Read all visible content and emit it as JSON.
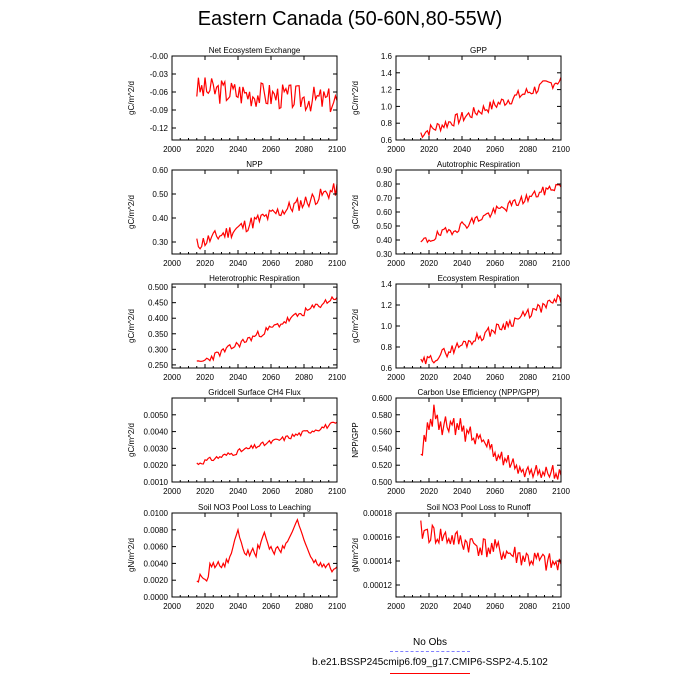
{
  "figure": {
    "title": "Eastern Canada (50-60N,80-55W)",
    "legend": {
      "obs_label": "No Obs",
      "obs_color": "#8080ff",
      "case_label": "b.e21.BSSP245cmip6.f09_g17.CMIP6-SSP2-4.5.102",
      "case_color": "#ff0000"
    }
  },
  "chart_data": [
    {
      "type": "line",
      "title": "Net Ecosystem Exchange",
      "ylabel": "gC/m^2/d",
      "xlim": [
        2000,
        2100
      ],
      "ylim": [
        -0.14,
        0.0
      ],
      "yticks": [
        -0.12,
        -0.09,
        -0.06,
        -0.03,
        -0.0
      ],
      "ytick_labels": [
        "-0.12",
        "-0.09",
        "-0.06",
        "-0.03",
        "-0.00"
      ],
      "xticks": [
        2000,
        2020,
        2040,
        2060,
        2080,
        2100
      ],
      "start": 2015,
      "trend": [
        -0.055,
        -0.075
      ],
      "noise": 0.022,
      "seed": 3
    },
    {
      "type": "line",
      "title": "GPP",
      "ylabel": "gC/m^2/d",
      "xlim": [
        2000,
        2100
      ],
      "ylim": [
        0.6,
        1.6
      ],
      "yticks": [
        0.6,
        0.8,
        1.0,
        1.2,
        1.4,
        1.6
      ],
      "ytick_labels": [
        "0.6",
        "0.8",
        "1.0",
        "1.2",
        "1.4",
        "1.6"
      ],
      "xticks": [
        2000,
        2020,
        2040,
        2060,
        2080,
        2100
      ],
      "start": 2015,
      "trend": [
        0.68,
        1.32
      ],
      "noise": 0.07,
      "seed": 7
    },
    {
      "type": "line",
      "title": "NPP",
      "ylabel": "gC/m^2/d",
      "xlim": [
        2000,
        2100
      ],
      "ylim": [
        0.25,
        0.6
      ],
      "yticks": [
        0.3,
        0.4,
        0.5,
        0.6
      ],
      "ytick_labels": [
        "0.30",
        "0.40",
        "0.50",
        "0.60"
      ],
      "xticks": [
        2000,
        2020,
        2040,
        2060,
        2080,
        2100
      ],
      "start": 2015,
      "trend": [
        0.29,
        0.52
      ],
      "noise": 0.03,
      "seed": 11
    },
    {
      "type": "line",
      "title": "Autotrophic Respiration",
      "ylabel": "gC/m^2/d",
      "xlim": [
        2000,
        2100
      ],
      "ylim": [
        0.3,
        0.9
      ],
      "yticks": [
        0.3,
        0.4,
        0.5,
        0.6,
        0.7,
        0.8,
        0.9
      ],
      "ytick_labels": [
        "0.30",
        "0.40",
        "0.50",
        "0.60",
        "0.70",
        "0.80",
        "0.90"
      ],
      "xticks": [
        2000,
        2020,
        2040,
        2060,
        2080,
        2100
      ],
      "start": 2015,
      "trend": [
        0.38,
        0.8
      ],
      "noise": 0.035,
      "seed": 19
    },
    {
      "type": "line",
      "title": "Heterotrophic Respiration",
      "ylabel": "gC/m^2/d",
      "xlim": [
        2000,
        2100
      ],
      "ylim": [
        0.24,
        0.51
      ],
      "yticks": [
        0.25,
        0.3,
        0.35,
        0.4,
        0.45,
        0.5
      ],
      "ytick_labels": [
        "0.250",
        "0.300",
        "0.350",
        "0.400",
        "0.450",
        "0.500"
      ],
      "xticks": [
        2000,
        2020,
        2040,
        2060,
        2080,
        2100
      ],
      "start": 2015,
      "trend": [
        0.252,
        0.47
      ],
      "noise": 0.012,
      "seed": 23
    },
    {
      "type": "line",
      "title": "Ecosystem Respiration",
      "ylabel": "gC/m^2/d",
      "xlim": [
        2000,
        2100
      ],
      "ylim": [
        0.6,
        1.4
      ],
      "yticks": [
        0.6,
        0.8,
        1.0,
        1.2,
        1.4
      ],
      "ytick_labels": [
        "0.6",
        "0.8",
        "1.0",
        "1.2",
        "1.4"
      ],
      "xticks": [
        2000,
        2020,
        2040,
        2060,
        2080,
        2100
      ],
      "start": 2015,
      "trend": [
        0.64,
        1.26
      ],
      "noise": 0.05,
      "seed": 29
    },
    {
      "type": "line",
      "title": "Gridcell Surface CH4 Flux",
      "ylabel": "gC/m^2/d",
      "xlim": [
        2000,
        2100
      ],
      "ylim": [
        0.001,
        0.006
      ],
      "yticks": [
        0.001,
        0.002,
        0.003,
        0.004,
        0.005
      ],
      "ytick_labels": [
        "0.0010",
        "0.0020",
        "0.0030",
        "0.0040",
        "0.0050"
      ],
      "xticks": [
        2000,
        2020,
        2040,
        2060,
        2080,
        2100
      ],
      "start": 2015,
      "trend": [
        0.0021,
        0.0045
      ],
      "noise": 0.00015,
      "seed": 31
    },
    {
      "type": "line",
      "title": "Carbon Use Efficiency (NPP/GPP)",
      "ylabel": "NPP/GPP",
      "xlim": [
        2000,
        2100
      ],
      "ylim": [
        0.5,
        0.6
      ],
      "yticks": [
        0.5,
        0.52,
        0.54,
        0.56,
        0.58,
        0.6
      ],
      "ytick_labels": [
        "0.500",
        "0.520",
        "0.540",
        "0.560",
        "0.580",
        "0.600"
      ],
      "xticks": [
        2000,
        2020,
        2040,
        2060,
        2080,
        2100
      ],
      "start": 2015,
      "points": [
        [
          2015,
          0.533
        ],
        [
          2016,
          0.532
        ],
        [
          2017,
          0.556
        ],
        [
          2018,
          0.548
        ],
        [
          2019,
          0.571
        ],
        [
          2020,
          0.562
        ],
        [
          2021,
          0.575
        ],
        [
          2022,
          0.566
        ],
        [
          2023,
          0.592
        ],
        [
          2024,
          0.575
        ],
        [
          2025,
          0.58
        ],
        [
          2026,
          0.562
        ],
        [
          2027,
          0.572
        ],
        [
          2028,
          0.556
        ],
        [
          2029,
          0.568
        ],
        [
          2030,
          0.578
        ],
        [
          2031,
          0.565
        ],
        [
          2032,
          0.56
        ],
        [
          2033,
          0.572
        ],
        [
          2034,
          0.568
        ],
        [
          2035,
          0.576
        ],
        [
          2036,
          0.556
        ],
        [
          2037,
          0.57
        ],
        [
          2038,
          0.562
        ],
        [
          2039,
          0.576
        ],
        [
          2040,
          0.56
        ],
        [
          2041,
          0.567
        ],
        [
          2042,
          0.548
        ],
        [
          2043,
          0.562
        ],
        [
          2044,
          0.558
        ],
        [
          2045,
          0.566
        ],
        [
          2046,
          0.55
        ],
        [
          2047,
          0.552
        ],
        [
          2048,
          0.545
        ],
        [
          2049,
          0.558
        ],
        [
          2050,
          0.552
        ],
        [
          2051,
          0.556
        ],
        [
          2052,
          0.548
        ],
        [
          2053,
          0.55
        ],
        [
          2054,
          0.546
        ],
        [
          2055,
          0.542
        ],
        [
          2056,
          0.551
        ],
        [
          2057,
          0.54
        ],
        [
          2058,
          0.545
        ],
        [
          2059,
          0.53
        ],
        [
          2060,
          0.535
        ],
        [
          2061,
          0.525
        ],
        [
          2062,
          0.532
        ],
        [
          2063,
          0.528
        ],
        [
          2064,
          0.536
        ],
        [
          2065,
          0.52
        ],
        [
          2066,
          0.528
        ],
        [
          2067,
          0.524
        ],
        [
          2068,
          0.532
        ],
        [
          2069,
          0.517
        ],
        [
          2070,
          0.522
        ],
        [
          2071,
          0.528
        ],
        [
          2072,
          0.516
        ],
        [
          2073,
          0.52
        ],
        [
          2074,
          0.51
        ],
        [
          2075,
          0.518
        ],
        [
          2076,
          0.512
        ],
        [
          2077,
          0.515
        ],
        [
          2078,
          0.506
        ],
        [
          2079,
          0.514
        ],
        [
          2080,
          0.518
        ],
        [
          2081,
          0.51
        ],
        [
          2082,
          0.515
        ],
        [
          2083,
          0.506
        ],
        [
          2084,
          0.512
        ],
        [
          2085,
          0.52
        ],
        [
          2086,
          0.509
        ],
        [
          2087,
          0.514
        ],
        [
          2088,
          0.505
        ],
        [
          2089,
          0.512
        ],
        [
          2090,
          0.508
        ],
        [
          2091,
          0.518
        ],
        [
          2092,
          0.51
        ],
        [
          2093,
          0.506
        ],
        [
          2094,
          0.512
        ],
        [
          2095,
          0.52
        ],
        [
          2096,
          0.504
        ],
        [
          2097,
          0.51
        ],
        [
          2098,
          0.503
        ],
        [
          2099,
          0.515
        ],
        [
          2100,
          0.508
        ]
      ]
    },
    {
      "type": "line",
      "title": "Soil NO3 Pool Loss to Leaching",
      "ylabel": "gN/m^2/d",
      "xlim": [
        2000,
        2100
      ],
      "ylim": [
        0.0,
        0.01
      ],
      "yticks": [
        0.0,
        0.002,
        0.004,
        0.006,
        0.008,
        0.01
      ],
      "ytick_labels": [
        "0.0000",
        "0.0020",
        "0.0040",
        "0.0060",
        "0.0080",
        "0.0100"
      ],
      "xticks": [
        2000,
        2020,
        2040,
        2060,
        2080,
        2100
      ],
      "start": 2015,
      "points": [
        [
          2015,
          0.0019
        ],
        [
          2016,
          0.0018
        ],
        [
          2017,
          0.0027
        ],
        [
          2018,
          0.0024
        ],
        [
          2019,
          0.0022
        ],
        [
          2020,
          0.0021
        ],
        [
          2021,
          0.0019
        ],
        [
          2022,
          0.0024
        ],
        [
          2023,
          0.004
        ],
        [
          2024,
          0.0036
        ],
        [
          2025,
          0.0041
        ],
        [
          2026,
          0.0035
        ],
        [
          2027,
          0.0038
        ],
        [
          2028,
          0.0042
        ],
        [
          2029,
          0.0037
        ],
        [
          2030,
          0.0035
        ],
        [
          2031,
          0.004
        ],
        [
          2032,
          0.0036
        ],
        [
          2033,
          0.0045
        ],
        [
          2034,
          0.0041
        ],
        [
          2035,
          0.0048
        ],
        [
          2036,
          0.0052
        ],
        [
          2037,
          0.006
        ],
        [
          2038,
          0.0068
        ],
        [
          2039,
          0.0074
        ],
        [
          2040,
          0.008
        ],
        [
          2041,
          0.0071
        ],
        [
          2042,
          0.0065
        ],
        [
          2043,
          0.0058
        ],
        [
          2044,
          0.0052
        ],
        [
          2045,
          0.005
        ],
        [
          2046,
          0.0056
        ],
        [
          2047,
          0.0049
        ],
        [
          2048,
          0.0054
        ],
        [
          2049,
          0.0058
        ],
        [
          2050,
          0.0052
        ],
        [
          2051,
          0.0048
        ],
        [
          2052,
          0.0062
        ],
        [
          2053,
          0.0058
        ],
        [
          2054,
          0.0066
        ],
        [
          2055,
          0.0072
        ],
        [
          2056,
          0.0077
        ],
        [
          2057,
          0.007
        ],
        [
          2058,
          0.0064
        ],
        [
          2059,
          0.0057
        ],
        [
          2060,
          0.006
        ],
        [
          2061,
          0.0055
        ],
        [
          2062,
          0.0051
        ],
        [
          2063,
          0.0058
        ],
        [
          2064,
          0.006
        ],
        [
          2065,
          0.0056
        ],
        [
          2066,
          0.0053
        ],
        [
          2067,
          0.0061
        ],
        [
          2068,
          0.0058
        ],
        [
          2069,
          0.0064
        ],
        [
          2070,
          0.0066
        ],
        [
          2071,
          0.007
        ],
        [
          2072,
          0.0074
        ],
        [
          2073,
          0.0078
        ],
        [
          2074,
          0.0083
        ],
        [
          2075,
          0.0088
        ],
        [
          2076,
          0.0092
        ],
        [
          2077,
          0.0085
        ],
        [
          2078,
          0.008
        ],
        [
          2079,
          0.0074
        ],
        [
          2080,
          0.0068
        ],
        [
          2081,
          0.0063
        ],
        [
          2082,
          0.0058
        ],
        [
          2083,
          0.0053
        ],
        [
          2084,
          0.0048
        ],
        [
          2085,
          0.0045
        ],
        [
          2086,
          0.0041
        ],
        [
          2087,
          0.0044
        ],
        [
          2088,
          0.0039
        ],
        [
          2089,
          0.0037
        ],
        [
          2090,
          0.0041
        ],
        [
          2091,
          0.0036
        ],
        [
          2092,
          0.0039
        ],
        [
          2093,
          0.0035
        ],
        [
          2094,
          0.0038
        ],
        [
          2095,
          0.004
        ],
        [
          2096,
          0.0034
        ],
        [
          2097,
          0.003
        ],
        [
          2098,
          0.0033
        ],
        [
          2099,
          0.0034
        ],
        [
          2100,
          0.0036
        ]
      ]
    },
    {
      "type": "line",
      "title": "Soil NO3 Pool Loss to Runoff",
      "ylabel": "gN/m^2/d",
      "xlim": [
        2000,
        2100
      ],
      "ylim": [
        0.00011,
        0.00018
      ],
      "yticks": [
        0.00012,
        0.00014,
        0.00016,
        0.00018
      ],
      "ytick_labels": [
        "0.00012",
        "0.00014",
        "0.00016",
        "0.00018"
      ],
      "xticks": [
        2000,
        2020,
        2040,
        2060,
        2080,
        2100
      ],
      "start": 2015,
      "trend": [
        0.000165,
        0.000135
      ],
      "noise": 9e-06,
      "seed": 41
    }
  ]
}
